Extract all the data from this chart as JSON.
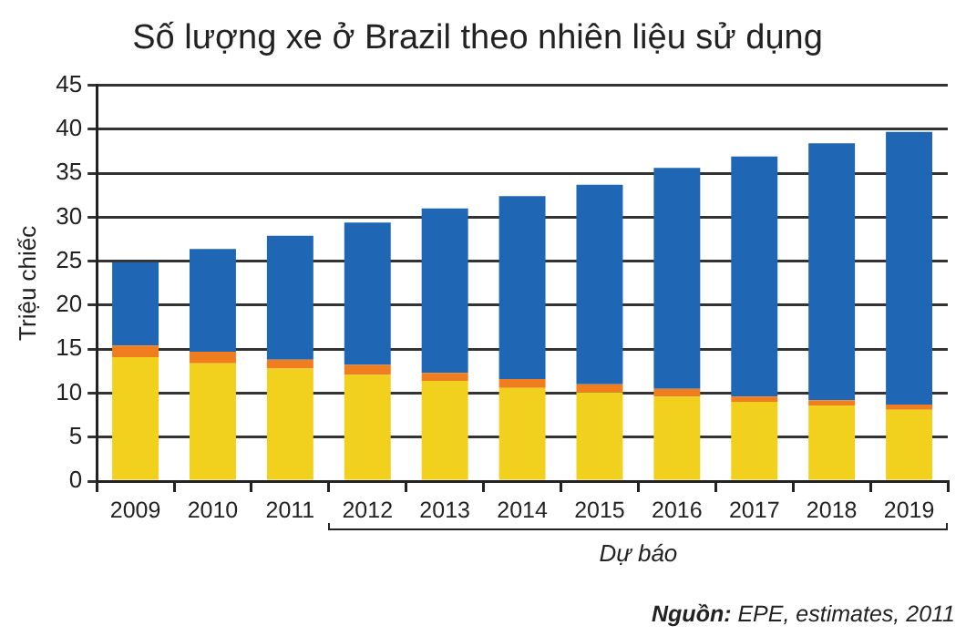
{
  "chart_data": {
    "type": "bar",
    "title": "Số lượng xe ở Brazil theo nhiên liệu sử dụng",
    "ylabel": "Triệu chiếc",
    "categories": [
      "2009",
      "2010",
      "2011",
      "2012",
      "2013",
      "2014",
      "2015",
      "2016",
      "2017",
      "2018",
      "2019"
    ],
    "stacked": true,
    "series": [
      {
        "color": "#f2d01e",
        "values": [
          14.1,
          13.4,
          12.8,
          12.1,
          11.4,
          10.6,
          10.1,
          9.6,
          9.0,
          8.6,
          8.1
        ]
      },
      {
        "color": "#f07d1e",
        "values": [
          1.3,
          1.3,
          1.0,
          1.1,
          0.9,
          1.0,
          0.9,
          0.9,
          0.6,
          0.6,
          0.6
        ]
      },
      {
        "color": "#1f66b5",
        "values": [
          9.5,
          11.7,
          14.1,
          16.2,
          18.7,
          20.8,
          22.7,
          25.1,
          27.3,
          29.2,
          31.0
        ]
      }
    ],
    "ylim": [
      0,
      45
    ],
    "yticks": [
      0,
      5,
      10,
      15,
      20,
      25,
      30,
      35,
      40,
      45
    ],
    "grid": "y",
    "legend": false,
    "annotations": [
      "Dự báo",
      "Nguồn: EPE, estimates, 2011"
    ]
  }
}
